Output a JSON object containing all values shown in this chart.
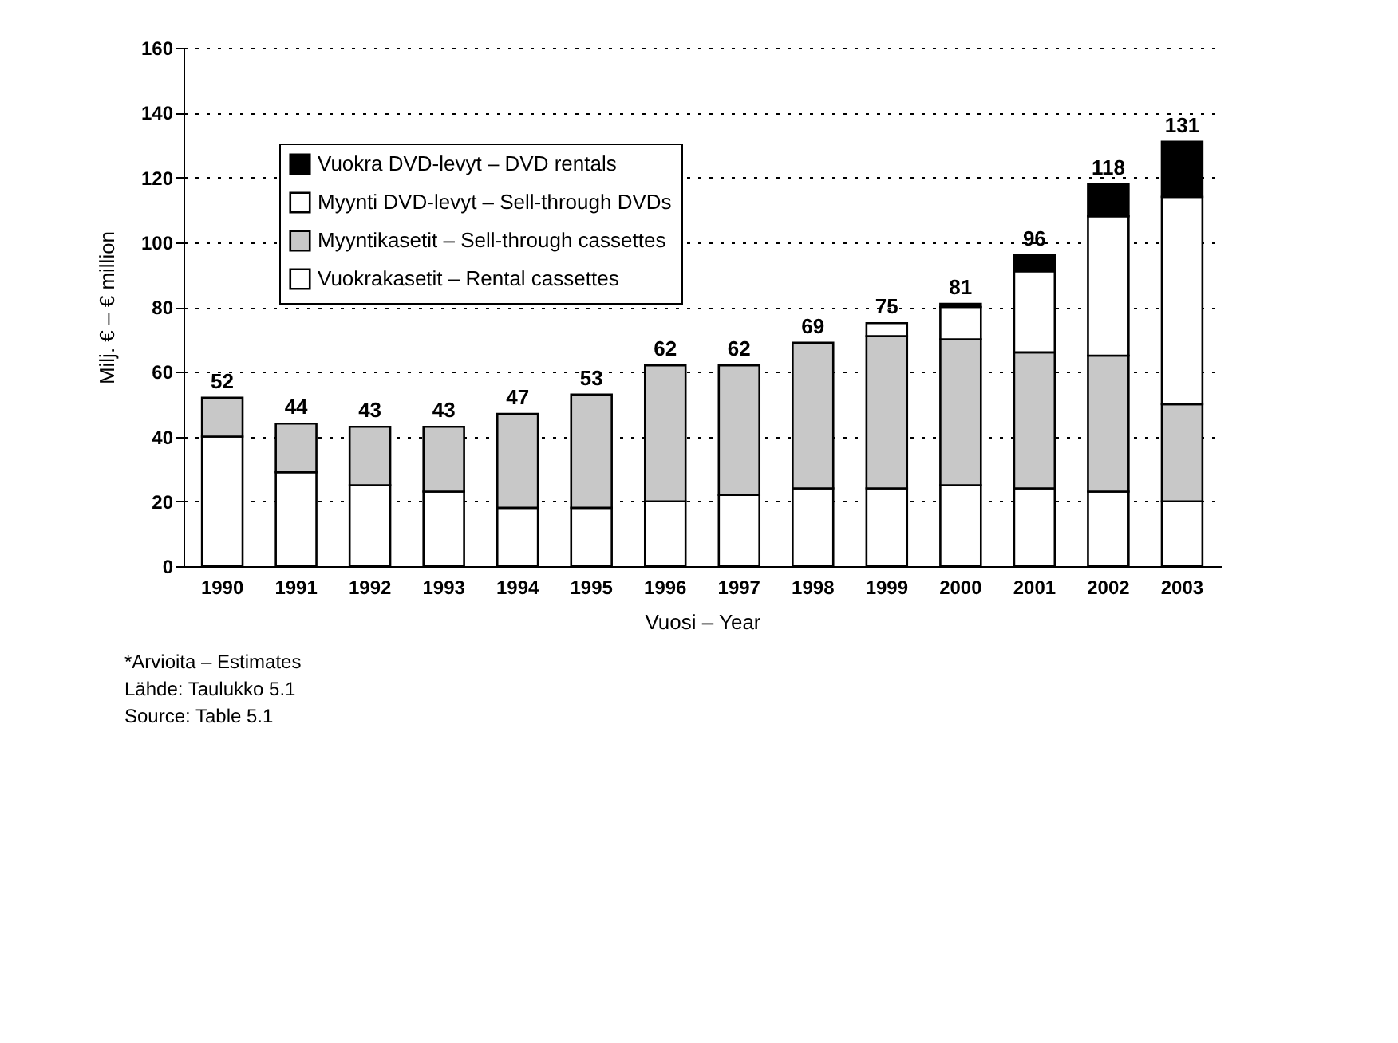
{
  "chart_data": {
    "type": "bar",
    "stacked": true,
    "categories": [
      "1990",
      "1991",
      "1992",
      "1993",
      "1994",
      "1995",
      "1996",
      "1997",
      "1998",
      "1999",
      "2000",
      "2001",
      "2002",
      "2003"
    ],
    "series": [
      {
        "name": "Vuokrakasetit – Rental cassettes",
        "color": "#ffffff",
        "values": [
          40,
          29,
          25,
          23,
          18,
          18,
          20,
          22,
          24,
          24,
          25,
          24,
          23,
          20
        ]
      },
      {
        "name": "Myyntikasetit – Sell-through cassettes",
        "color": "#c8c8c8",
        "values": [
          12,
          15,
          18,
          20,
          29,
          35,
          42,
          40,
          45,
          47,
          45,
          42,
          42,
          30
        ]
      },
      {
        "name": "Myynti DVD-levyt – Sell-through DVDs",
        "color": "#ffffff",
        "values": [
          null,
          null,
          null,
          null,
          null,
          null,
          null,
          null,
          null,
          4,
          10,
          25,
          43,
          64
        ]
      },
      {
        "name": "Vuokra DVD-levyt – DVD rentals",
        "color": "#000000",
        "values": [
          null,
          null,
          null,
          null,
          null,
          null,
          null,
          null,
          null,
          null,
          1,
          5,
          10,
          17
        ]
      }
    ],
    "totals": [
      "52",
      "44",
      "43",
      "43",
      "47",
      "53",
      "62",
      "62",
      "69",
      "75",
      "81",
      "96",
      "118",
      "131"
    ],
    "ylim": [
      0,
      160
    ],
    "yticks": [
      0,
      20,
      40,
      60,
      80,
      100,
      120,
      140,
      160
    ],
    "xlabel": "Vuosi – Year",
    "ylabel": "Milj. € – € million",
    "grid": "y",
    "legend": "top left",
    "annotations": [
      "*Arvioita – Estimates",
      "Lähde: Taulukko 5.1",
      "Source: Table 5.1"
    ]
  }
}
